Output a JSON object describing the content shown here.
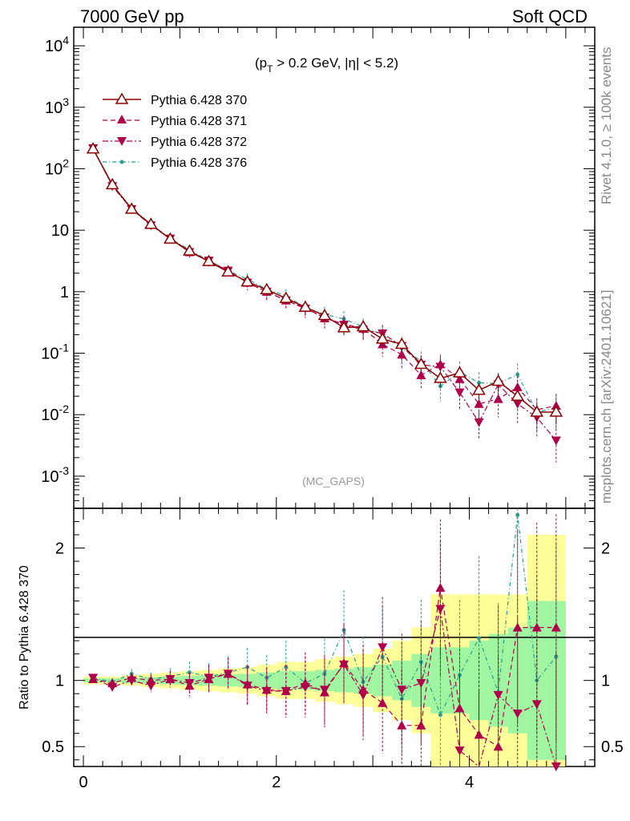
{
  "header": {
    "left": "7000 GeV pp",
    "right": "Soft QCD"
  },
  "side_labels": {
    "events": "Rivet 4.1.0, ≥ 100k events",
    "source": "mcplots.cern.ch [arXiv:2401.10621]"
  },
  "watermark": "(MC_GAPS)",
  "cut_label": {
    "prefix": "(p",
    "sub": "T",
    "rest": " > 0.2 GeV, |η| < 5.2)"
  },
  "colors": {
    "s370": "#8b0000",
    "s371": "#b0004b",
    "s372": "#b0004b",
    "s376": "#2a9d8f",
    "band_inner": "#a0f5a0",
    "band_outer": "#ffff99"
  },
  "chart_data": {
    "type": "scatter",
    "top": {
      "yscale": "log",
      "ylim": [
        0.0003,
        20000
      ],
      "ytick_labels": [
        "10^-3",
        "10^-2",
        "10^-1",
        "1",
        "10",
        "10^2",
        "10^3",
        "10^4"
      ],
      "xlim": [
        -0.1,
        5.3
      ],
      "series": [
        {
          "name": "Pythia 6.428 370",
          "marker": "triangle-up-open",
          "linestyle": "solid",
          "x": [
            0.1,
            0.3,
            0.5,
            0.7,
            0.9,
            1.1,
            1.3,
            1.5,
            1.7,
            1.9,
            2.1,
            2.3,
            2.5,
            2.7,
            2.9,
            3.1,
            3.3,
            3.5,
            3.7,
            3.9,
            4.1,
            4.3,
            4.5,
            4.7,
            4.9
          ],
          "y": [
            210,
            55,
            22,
            12.5,
            7.2,
            4.6,
            3.1,
            2.1,
            1.45,
            1.08,
            0.78,
            0.56,
            0.41,
            0.26,
            0.27,
            0.17,
            0.14,
            0.066,
            0.039,
            0.048,
            0.025,
            0.035,
            0.02,
            0.011,
            0.011
          ]
        },
        {
          "name": "Pythia 6.428 371",
          "marker": "triangle-up-filled",
          "linestyle": "dashed",
          "x": [
            0.1,
            0.3,
            0.5,
            0.7,
            0.9,
            1.1,
            1.3,
            1.5,
            1.7,
            1.9,
            2.1,
            2.3,
            2.5,
            2.7,
            2.9,
            3.1,
            3.3,
            3.5,
            3.7,
            3.9,
            4.1,
            4.3,
            4.5,
            4.7,
            4.9
          ],
          "y": [
            212,
            54,
            22.5,
            12.3,
            7.3,
            4.4,
            3.15,
            2.2,
            1.4,
            1.0,
            0.72,
            0.55,
            0.37,
            0.3,
            0.25,
            0.14,
            0.095,
            0.044,
            0.066,
            0.038,
            0.015,
            0.018,
            0.028,
            0.012,
            0.014
          ]
        },
        {
          "name": "Pythia 6.428 372",
          "marker": "triangle-down-filled",
          "linestyle": "dashdot",
          "x": [
            0.1,
            0.3,
            0.5,
            0.7,
            0.9,
            1.1,
            1.3,
            1.5,
            1.7,
            1.9,
            2.1,
            2.3,
            2.5,
            2.7,
            2.9,
            3.1,
            3.3,
            3.5,
            3.7,
            3.9,
            4.1,
            4.3,
            4.5,
            4.7,
            4.9
          ],
          "y": [
            215,
            52,
            22,
            12,
            7.3,
            4.4,
            3.2,
            2.2,
            1.4,
            1.0,
            0.72,
            0.53,
            0.38,
            0.29,
            0.24,
            0.21,
            0.13,
            0.065,
            0.06,
            0.023,
            0.0075,
            0.031,
            0.015,
            0.009,
            0.0038
          ]
        },
        {
          "name": "Pythia 6.428 376",
          "marker": "dot",
          "linestyle": "dotted",
          "x": [
            0.1,
            0.3,
            0.5,
            0.7,
            0.9,
            1.1,
            1.3,
            1.5,
            1.7,
            1.9,
            2.1,
            2.3,
            2.5,
            2.7,
            2.9,
            3.1,
            3.3,
            3.5,
            3.7,
            3.9,
            4.1,
            4.3,
            4.5,
            4.7,
            4.9
          ],
          "y": [
            215,
            55,
            23,
            12.6,
            7.4,
            4.8,
            3.2,
            2.2,
            1.6,
            1.1,
            0.86,
            0.55,
            0.43,
            0.36,
            0.27,
            0.2,
            0.12,
            0.075,
            0.029,
            0.05,
            0.033,
            0.032,
            0.045,
            0.011,
            0.013
          ]
        }
      ]
    },
    "ratio": {
      "ylabel": "Ratio to Pythia 6.428 370",
      "ylim": [
        0.35,
        2.3
      ],
      "yticks": [
        0.5,
        1,
        2
      ],
      "xlim": [
        -0.1,
        5.3
      ],
      "xticks": [
        0,
        2,
        4
      ],
      "x": [
        0.1,
        0.3,
        0.5,
        0.7,
        0.9,
        1.1,
        1.3,
        1.5,
        1.7,
        1.9,
        2.1,
        2.3,
        2.5,
        2.7,
        2.9,
        3.1,
        3.3,
        3.5,
        3.7,
        3.9,
        4.1,
        4.3,
        4.5,
        4.7,
        4.9
      ],
      "band_inner": [
        0.015,
        0.015,
        0.02,
        0.025,
        0.03,
        0.035,
        0.04,
        0.045,
        0.05,
        0.06,
        0.07,
        0.07,
        0.08,
        0.09,
        0.1,
        0.12,
        0.15,
        0.2,
        0.25,
        0.25,
        0.3,
        0.35,
        0.4,
        0.6,
        0.6
      ],
      "band_outer": [
        0.03,
        0.03,
        0.04,
        0.05,
        0.06,
        0.07,
        0.08,
        0.09,
        0.1,
        0.12,
        0.14,
        0.14,
        0.16,
        0.18,
        0.2,
        0.24,
        0.3,
        0.4,
        0.65,
        0.65,
        0.65,
        0.65,
        0.65,
        1.1,
        1.1
      ],
      "series": [
        {
          "name": "Pythia 6.428 371",
          "y": [
            1.01,
            0.98,
            1.02,
            1.0,
            1.01,
            0.96,
            1.01,
            1.05,
            0.97,
            0.93,
            0.92,
            0.98,
            0.91,
            1.13,
            0.93,
            0.83,
            0.66,
            0.66,
            1.7,
            0.79,
            0.59,
            0.5,
            1.4,
            1.4,
            1.4
          ]
        },
        {
          "name": "Pythia 6.428 372",
          "y": [
            1.02,
            0.95,
            1.0,
            0.96,
            1.01,
            0.98,
            1.02,
            1.05,
            0.96,
            0.92,
            0.92,
            0.95,
            0.93,
            1.12,
            0.89,
            1.25,
            0.93,
            0.98,
            1.54,
            0.47,
            0.3,
            0.89,
            0.75,
            0.82,
            0.35
          ]
        },
        {
          "name": "Pythia 6.428 376",
          "y": [
            1.02,
            0.99,
            1.05,
            1.01,
            1.03,
            1.06,
            1.03,
            1.06,
            1.1,
            1.02,
            1.1,
            0.98,
            1.05,
            1.38,
            0.99,
            1.18,
            0.86,
            1.14,
            0.74,
            1.04,
            1.32,
            0.91,
            2.25,
            1.0,
            1.18
          ]
        }
      ]
    }
  }
}
